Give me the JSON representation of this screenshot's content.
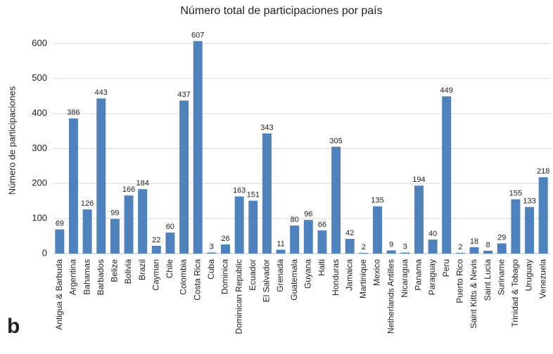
{
  "chart_data": {
    "type": "bar",
    "title": "Número total de participaciones por país",
    "y_label": "Número de participaciones",
    "panel_label": "b",
    "categories": [
      "Antigua & Barbuda",
      "Argentina",
      "Bahamas",
      "Barbados",
      "Belize",
      "Bolivia",
      "Brazil",
      "Cayman",
      "Chile",
      "Colombia",
      "Costa Rica",
      "Cuba",
      "Dominica",
      "Dominican Republic",
      "Ecuador",
      "El Salvador",
      "Grenada",
      "Guatemala",
      "Guyana",
      "Haiti",
      "Honduras",
      "Jamaica",
      "Martinique",
      "Mexico",
      "Netherlands Antilles",
      "Nicaragua",
      "Panama",
      "Paraguay",
      "Peru",
      "Puerto Rico",
      "Saint Kitts & Nevis",
      "Saint Lucia",
      "Suriname",
      "Trinidad & Tobago",
      "Uruguay",
      "Venezuela"
    ],
    "values": [
      69,
      386,
      126,
      443,
      99,
      166,
      184,
      22,
      60,
      437,
      607,
      3,
      26,
      163,
      151,
      343,
      11,
      80,
      96,
      66,
      305,
      42,
      2,
      135,
      9,
      3,
      194,
      40,
      449,
      2,
      18,
      8,
      29,
      155,
      133,
      218
    ],
    "color": "#4f81bd",
    "ylim": [
      0,
      650
    ],
    "yticks": [
      0,
      100,
      200,
      300,
      400,
      500,
      600
    ],
    "grid": true
  }
}
